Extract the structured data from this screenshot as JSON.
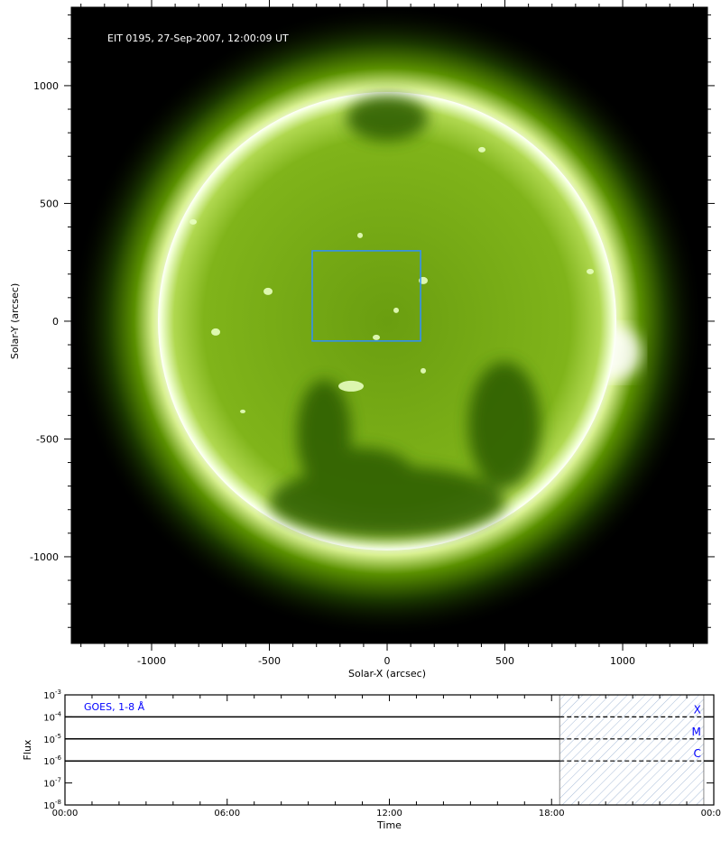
{
  "chart_data": [
    {
      "type": "heatmap",
      "title": "EIT 0195, 27-Sep-2007, 12:00:09 UT",
      "xlabel": "Solar-X (arcsec)",
      "ylabel": "Solar-Y (arcsec)",
      "xlim": [
        -1341,
        1360
      ],
      "ylim": [
        -1368,
        1333
      ],
      "xticks": [
        -1000,
        -500,
        0,
        500,
        1000
      ],
      "yticks": [
        -1000,
        -500,
        0,
        500,
        1000
      ],
      "xtick_labels": [
        "-1000",
        "-500",
        "0",
        "500",
        "1000"
      ],
      "ytick_labels": [
        "-1000",
        "-500",
        "0",
        "500",
        "1000"
      ],
      "solar_disk": {
        "center_x": 0,
        "center_y": 0,
        "radius": 973
      },
      "colormap": [
        "#000000",
        "#1f4a00",
        "#7fb800",
        "#c8e870",
        "#ffffff"
      ],
      "selection_box": {
        "x0": -318,
        "x1": 142,
        "y0": -84,
        "y1": 299,
        "color": "#2f8fff"
      }
    },
    {
      "type": "line",
      "title": "",
      "legend": "GOES, 1-8 Å",
      "legend_color": "#0000ff",
      "xlabel": "Time",
      "ylabel": "Flux",
      "xlim_hours": [
        0,
        24
      ],
      "xticks": [
        "00:00",
        "06:00",
        "12:00",
        "18:00",
        "00:00"
      ],
      "ylim": [
        1e-08,
        0.001
      ],
      "yscale": "log",
      "ytick_labels": [
        {
          "base": "10",
          "exp": "-3"
        },
        {
          "base": "10",
          "exp": "-4"
        },
        {
          "base": "10",
          "exp": "-5"
        },
        {
          "base": "10",
          "exp": "-6"
        },
        {
          "base": "10",
          "exp": "-7"
        },
        {
          "base": "10",
          "exp": "-8"
        }
      ],
      "class_levels": [
        {
          "label": "X",
          "value": 0.0001
        },
        {
          "label": "M",
          "value": 1e-05
        },
        {
          "label": "C",
          "value": 1e-06
        }
      ],
      "no_data_region_hours": [
        18.3,
        23.63
      ],
      "series": []
    }
  ]
}
